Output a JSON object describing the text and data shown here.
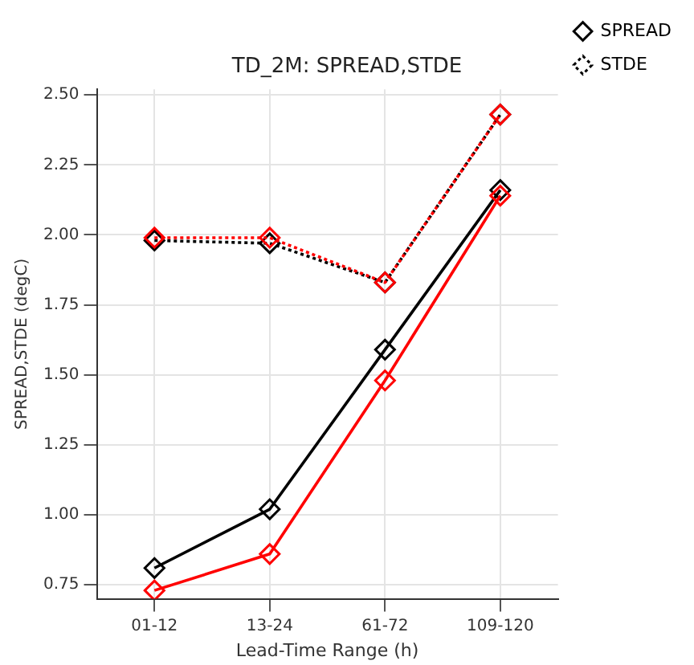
{
  "chart_data": {
    "type": "line",
    "title": "TD_2M: SPREAD,STDE",
    "xlabel": "Lead-Time Range (h)",
    "ylabel": "SPREAD,STDE (degC)",
    "categories": [
      "01-12",
      "13-24",
      "61-72",
      "109-120"
    ],
    "series": [
      {
        "name": "SPREAD",
        "color": "#000000",
        "values": [
          0.81,
          1.02,
          1.59,
          2.16
        ],
        "line_style": "solid"
      },
      {
        "name": "STDE",
        "color": "#000000",
        "values": [
          1.98,
          1.97,
          1.83,
          2.43
        ],
        "line_style": "dotted"
      },
      {
        "color": "#ff0000",
        "values": [
          0.73,
          0.86,
          1.48,
          2.14
        ],
        "line_style": "solid"
      },
      {
        "color": "#ff0000",
        "values": [
          1.99,
          1.99,
          1.83,
          2.43
        ],
        "line_style": "dotted"
      }
    ],
    "ylim": [
      0.7,
      2.52
    ],
    "yticks": [
      {
        "value": 0.75,
        "label": "0.75"
      },
      {
        "value": 1,
        "label": "1.00"
      },
      {
        "value": 1.25,
        "label": "1.25"
      },
      {
        "value": 1.5,
        "label": "1.50"
      },
      {
        "value": 1.75,
        "label": "1.75"
      },
      {
        "value": 2,
        "label": "2.00"
      },
      {
        "value": 2.25,
        "label": "2.25"
      },
      {
        "value": 2.5,
        "label": "2.50"
      }
    ],
    "grid": true,
    "legend": "top right",
    "marker": "diamond"
  }
}
